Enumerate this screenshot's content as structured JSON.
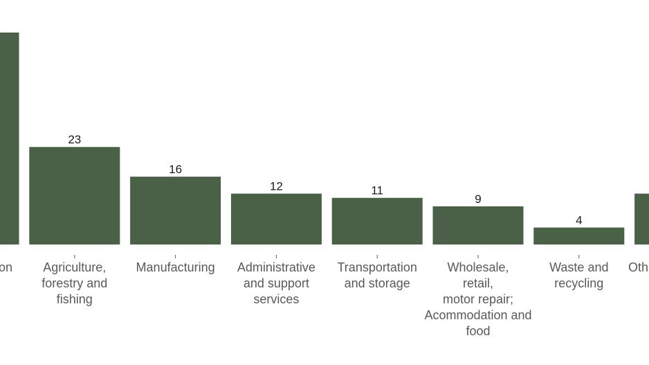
{
  "chart_data": {
    "type": "bar",
    "categories": [
      "on",
      "Agriculture,\nforestry and\nfishing",
      "Manufacturing",
      "Administrative\nand support\nservices",
      "Transportation\nand storage",
      "Wholesale,\nretail,\nmotor repair;\nAcommodation and\nfood",
      "Waste and\nrecycling",
      "Oth"
    ],
    "values": [
      50,
      23,
      16,
      12,
      11,
      9,
      4,
      12
    ],
    "data_labels": [
      "",
      "23",
      "16",
      "12",
      "11",
      "9",
      "4",
      ""
    ],
    "ylim": [
      0,
      55
    ],
    "grid": false,
    "legend": "none",
    "bar_color": "#4a6047"
  }
}
